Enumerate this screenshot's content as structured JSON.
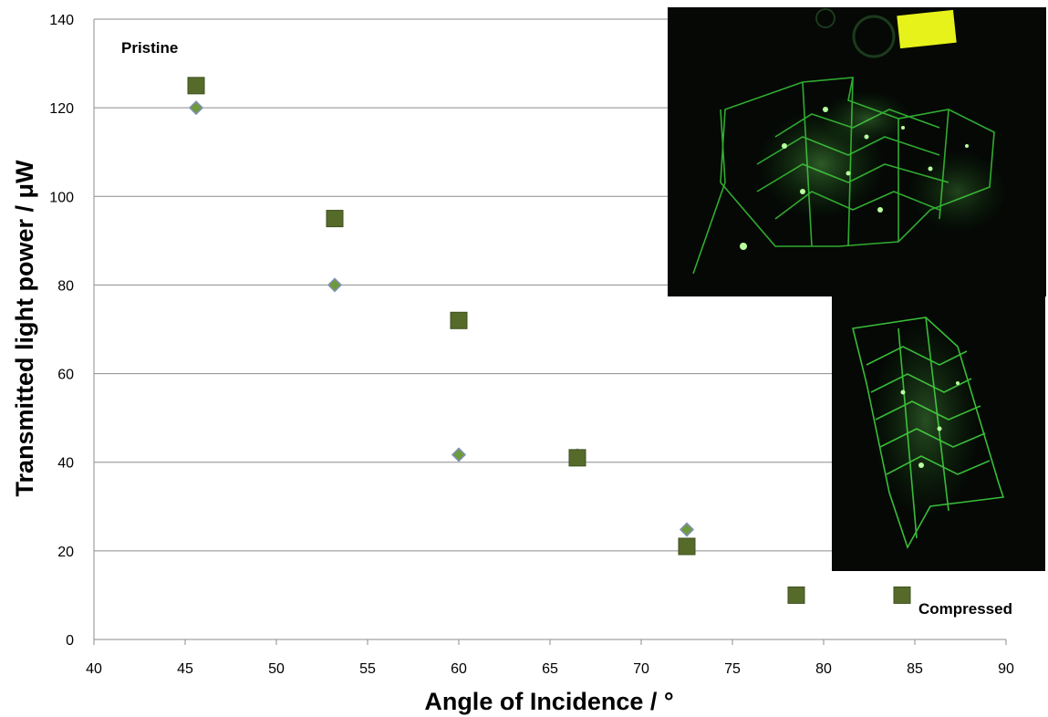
{
  "chart_data": {
    "type": "scatter",
    "title": "",
    "xlabel": "Angle of Incidence / °",
    "ylabel": "Transmitted  light power / μW",
    "xlim": [
      40,
      90
    ],
    "ylim": [
      0,
      140
    ],
    "xticks": [
      40,
      45,
      50,
      55,
      60,
      65,
      70,
      75,
      80,
      85,
      90
    ],
    "yticks": [
      0,
      20,
      40,
      60,
      80,
      100,
      120,
      140
    ],
    "grid": "horizontal",
    "legend": "none",
    "series": [
      {
        "marker": "diamond",
        "color": "#6f9a3b",
        "stroke": "#7f8fb5",
        "points": [
          [
            45.6,
            120
          ],
          [
            53.2,
            80
          ],
          [
            60.0,
            41.7
          ],
          [
            66.5,
            41.5
          ],
          [
            72.5,
            24.8
          ]
        ]
      },
      {
        "marker": "square",
        "color": "#566b2a",
        "stroke": "#3f5020",
        "points": [
          [
            45.6,
            125
          ],
          [
            53.2,
            95
          ],
          [
            60.0,
            72
          ],
          [
            66.5,
            41
          ],
          [
            72.5,
            21
          ],
          [
            78.5,
            10
          ],
          [
            84.3,
            10
          ]
        ]
      }
    ],
    "annotations": [
      {
        "text": "Pristine"
      },
      {
        "text": "Compressed"
      }
    ]
  },
  "insets": [
    {
      "name": "pristine-photo-inset",
      "description_icon": "green-origami-photo"
    },
    {
      "name": "compressed-photo-inset",
      "description_icon": "green-origami-photo"
    }
  ]
}
